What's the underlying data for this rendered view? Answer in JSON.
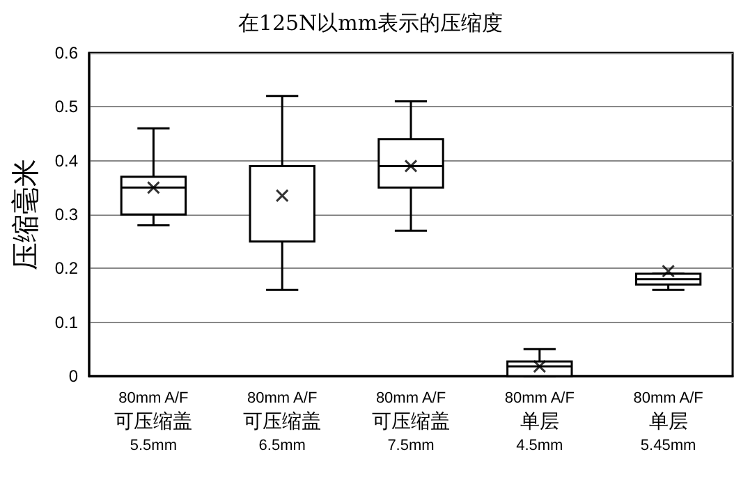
{
  "chart_data": {
    "type": "box",
    "title": "在125N以mm表示的压缩度",
    "ylabel": "压缩毫米",
    "categories": [
      "80mm A/F\n可压缩盖\n5.5mm",
      "80mm A/F\n可压缩盖\n6.5mm",
      "80mm A/F\n可压缩盖\n7.5mm",
      "80mm A/F\n单层\n4.5mm",
      "80mm A/F\n单层\n5.45mm"
    ],
    "boxes": [
      {
        "low": 0.28,
        "q1": 0.3,
        "median": 0.35,
        "q3": 0.37,
        "high": 0.46,
        "mean": 0.35
      },
      {
        "low": 0.16,
        "q1": 0.25,
        "median": 0.39,
        "q3": 0.39,
        "high": 0.52,
        "mean": 0.335
      },
      {
        "low": 0.27,
        "q1": 0.35,
        "median": 0.39,
        "q3": 0.44,
        "high": 0.51,
        "mean": 0.39
      },
      {
        "low": 0,
        "q1": 0,
        "median": 0.018,
        "q3": 0.027,
        "high": 0.05,
        "mean": 0.018
      },
      {
        "low": 0.16,
        "q1": 0.17,
        "median": 0.18,
        "q3": 0.19,
        "high": 0.19,
        "mean": 0.195
      }
    ],
    "color": "#000000",
    "ylim": [
      0,
      0.6
    ],
    "yticks": [
      0,
      0.1,
      0.2,
      0.3,
      0.4,
      0.5,
      0.6
    ],
    "grid": "y"
  }
}
